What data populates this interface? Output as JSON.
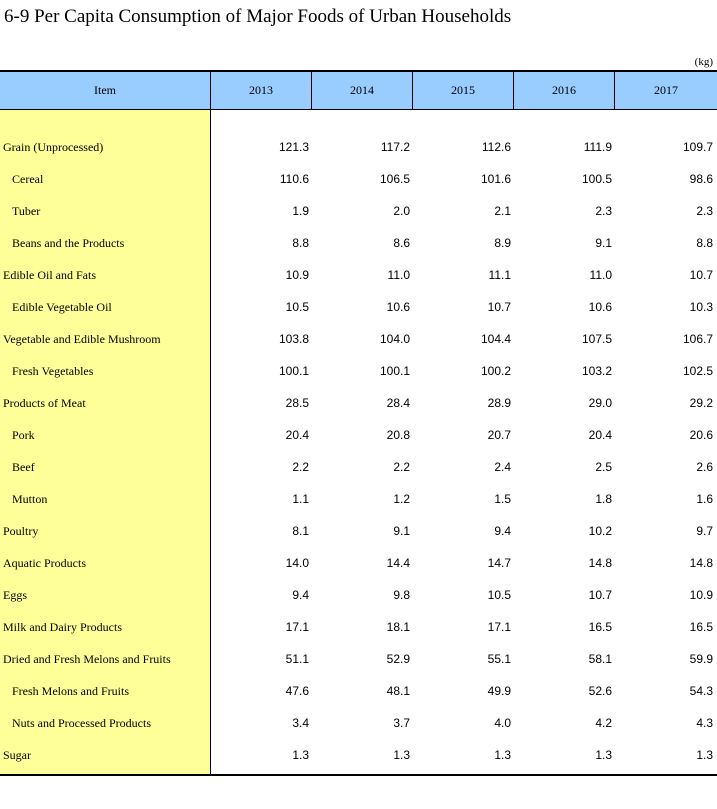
{
  "title": "6-9  Per Capita Consumption of Major Foods of Urban Households",
  "unit": "(kg)",
  "columns": [
    "Item",
    "2013",
    "2014",
    "2015",
    "2016",
    "2017"
  ],
  "colors": {
    "header_bg": "#99ccff",
    "item_column_bg": "#ffff99"
  },
  "rows": [
    {
      "label": "Grain (Unprocessed)",
      "indent": false,
      "values": [
        "121.3",
        "117.2",
        "112.6",
        "111.9",
        "109.7"
      ]
    },
    {
      "label": "Cereal",
      "indent": true,
      "values": [
        "110.6",
        "106.5",
        "101.6",
        "100.5",
        "98.6"
      ]
    },
    {
      "label": "Tuber",
      "indent": true,
      "values": [
        "1.9",
        "2.0",
        "2.1",
        "2.3",
        "2.3"
      ]
    },
    {
      "label": "Beans and the Products",
      "indent": true,
      "values": [
        "8.8",
        "8.6",
        "8.9",
        "9.1",
        "8.8"
      ]
    },
    {
      "label": "Edible Oil and Fats",
      "indent": false,
      "values": [
        "10.9",
        "11.0",
        "11.1",
        "11.0",
        "10.7"
      ]
    },
    {
      "label": "Edible Vegetable Oil",
      "indent": true,
      "values": [
        "10.5",
        "10.6",
        "10.7",
        "10.6",
        "10.3"
      ]
    },
    {
      "label": "Vegetable and Edible Mushroom",
      "indent": false,
      "values": [
        "103.8",
        "104.0",
        "104.4",
        "107.5",
        "106.7"
      ]
    },
    {
      "label": "Fresh Vegetables",
      "indent": true,
      "values": [
        "100.1",
        "100.1",
        "100.2",
        "103.2",
        "102.5"
      ]
    },
    {
      "label": "Products of Meat",
      "indent": false,
      "values": [
        "28.5",
        "28.4",
        "28.9",
        "29.0",
        "29.2"
      ]
    },
    {
      "label": "Pork",
      "indent": true,
      "values": [
        "20.4",
        "20.8",
        "20.7",
        "20.4",
        "20.6"
      ]
    },
    {
      "label": "Beef",
      "indent": true,
      "values": [
        "2.2",
        "2.2",
        "2.4",
        "2.5",
        "2.6"
      ]
    },
    {
      "label": "Mutton",
      "indent": true,
      "values": [
        "1.1",
        "1.2",
        "1.5",
        "1.8",
        "1.6"
      ]
    },
    {
      "label": "Poultry",
      "indent": false,
      "values": [
        "8.1",
        "9.1",
        "9.4",
        "10.2",
        "9.7"
      ]
    },
    {
      "label": "Aquatic Products",
      "indent": false,
      "values": [
        "14.0",
        "14.4",
        "14.7",
        "14.8",
        "14.8"
      ]
    },
    {
      "label": "Eggs",
      "indent": false,
      "values": [
        "9.4",
        "9.8",
        "10.5",
        "10.7",
        "10.9"
      ]
    },
    {
      "label": "Milk and Dairy Products",
      "indent": false,
      "values": [
        "17.1",
        "18.1",
        "17.1",
        "16.5",
        "16.5"
      ]
    },
    {
      "label": "Dried and Fresh Melons and Fruits",
      "indent": false,
      "values": [
        "51.1",
        "52.9",
        "55.1",
        "58.1",
        "59.9"
      ]
    },
    {
      "label": "Fresh Melons and Fruits",
      "indent": true,
      "values": [
        "47.6",
        "48.1",
        "49.9",
        "52.6",
        "54.3"
      ]
    },
    {
      "label": "Nuts and Processed Products",
      "indent": true,
      "values": [
        "3.4",
        "3.7",
        "4.0",
        "4.2",
        "4.3"
      ]
    },
    {
      "label": "Sugar",
      "indent": false,
      "values": [
        "1.3",
        "1.3",
        "1.3",
        "1.3",
        "1.3"
      ]
    }
  ]
}
